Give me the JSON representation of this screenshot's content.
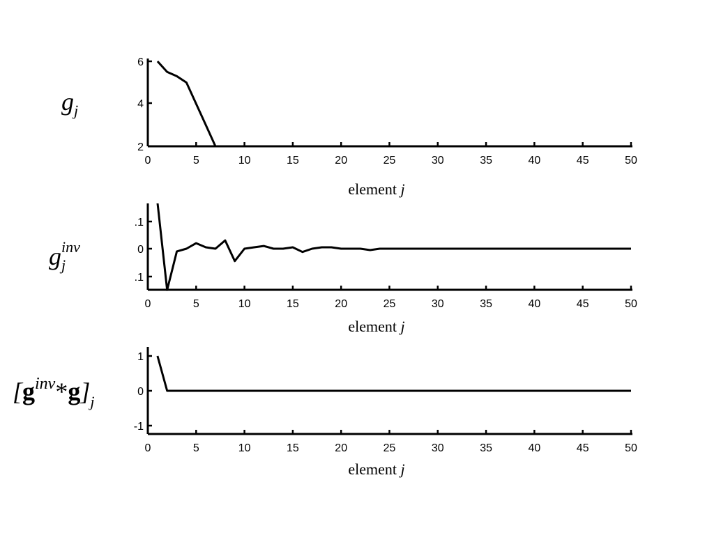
{
  "chart_data": [
    {
      "type": "line",
      "ylabel": "g_j",
      "xlabel": "element j",
      "xlim": [
        0,
        50
      ],
      "ylim": [
        2,
        6
      ],
      "xticks": [
        "0",
        "5",
        "10",
        "15",
        "20",
        "25",
        "30",
        "35",
        "40",
        "45",
        "50"
      ],
      "yticks": [
        "2",
        "4",
        "6"
      ],
      "series": [
        {
          "x": [
            1,
            2,
            3,
            4,
            5,
            6,
            7
          ],
          "y": [
            6.0,
            5.5,
            5.3,
            5.0,
            4.0,
            3.0,
            2.0
          ]
        }
      ]
    },
    {
      "type": "line",
      "ylabel": "g_j^inv",
      "xlabel": "element j",
      "xlim": [
        0,
        50
      ],
      "ylim": [
        -0.15,
        0.16
      ],
      "xticks": [
        "0",
        "5",
        "10",
        "15",
        "20",
        "25",
        "30",
        "35",
        "40",
        "45",
        "50"
      ],
      "yticks": [
        ".1",
        "0",
        ".1"
      ],
      "series": [
        {
          "x": [
            1,
            2,
            3,
            4,
            5,
            6,
            7,
            8,
            9,
            10,
            11,
            12,
            13,
            14,
            15,
            16,
            17,
            18,
            19,
            20,
            21,
            22,
            23,
            24,
            25,
            30,
            35,
            40,
            45,
            50
          ],
          "y": [
            0.167,
            -0.15,
            -0.01,
            0.0,
            0.02,
            0.005,
            0.0,
            0.03,
            -0.045,
            0.0,
            0.005,
            0.01,
            0.0,
            0.0,
            0.005,
            -0.012,
            0.0,
            0.005,
            0.005,
            0.0,
            0.0,
            0.0,
            -0.005,
            0.0,
            0.0,
            0.0,
            0.0,
            0.0,
            0.0,
            0.0
          ]
        }
      ]
    },
    {
      "type": "line",
      "ylabel": "[g^inv*g]_j",
      "xlabel": "element j",
      "xlim": [
        0,
        50
      ],
      "ylim": [
        -1.2,
        1.2
      ],
      "xticks": [
        "0",
        "5",
        "10",
        "15",
        "20",
        "25",
        "30",
        "35",
        "40",
        "45",
        "50"
      ],
      "yticks": [
        "-1",
        "0",
        "1"
      ],
      "series": [
        {
          "x": [
            1,
            2,
            50
          ],
          "y": [
            1.0,
            0.0,
            0.0
          ]
        }
      ]
    }
  ],
  "labels": {
    "p1_y_main": "g",
    "p1_y_sub": "j",
    "p2_y_main": "g",
    "p2_y_sup": "inv",
    "p2_y_sub": "j",
    "p3_y_open": "[",
    "p3_y_g1": "g",
    "p3_y_sup": "inv",
    "p3_y_star": "*",
    "p3_y_g2": "g",
    "p3_y_close": "]",
    "p3_y_sub": "j",
    "xlabel_word": "element",
    "xlabel_var": "j"
  }
}
